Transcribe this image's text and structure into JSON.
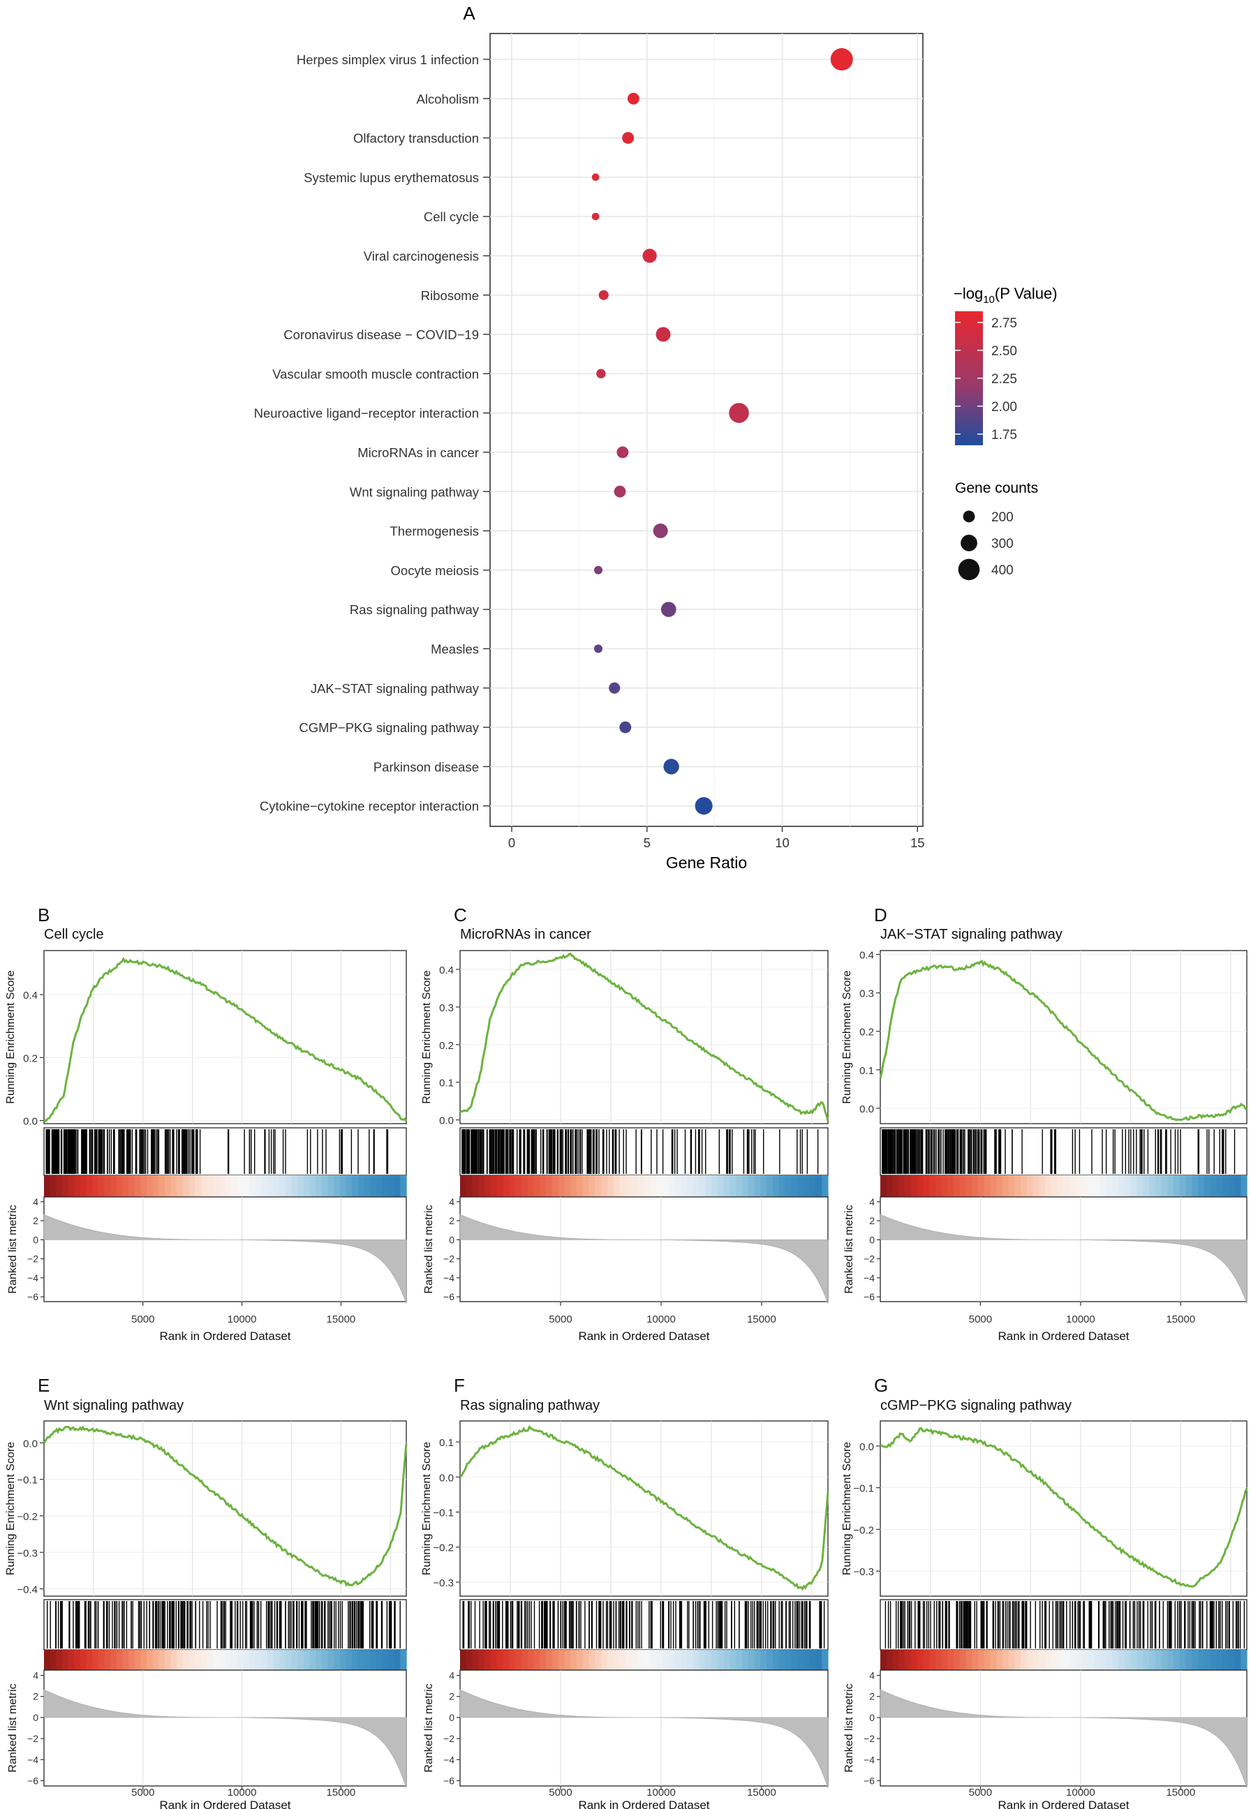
{
  "colors": {
    "high": "#E8272E",
    "mid": "#9B3A6B",
    "low": "#1E4C9E",
    "curve": "#6CB33F",
    "metric_fill": "#BDBDBD",
    "grid": "#E6E6E6"
  },
  "dotplot": {
    "panel_label": "A",
    "xlabel": "Gene Ratio",
    "xticks": [
      "0",
      "5",
      "10",
      "15"
    ],
    "legend_color": {
      "title_prefix": "−log",
      "title_sub": "10",
      "title_suffix": "(P Value)",
      "ticks": [
        "2.75",
        "2.50",
        "2.25",
        "2.00",
        "1.75"
      ]
    },
    "legend_size": {
      "title": "Gene counts",
      "labels": [
        "200",
        "300",
        "400"
      ]
    }
  },
  "chart_data": [
    {
      "type": "scatter",
      "title": "A",
      "xlabel": "Gene Ratio",
      "xlim": [
        -0.8,
        15.2
      ],
      "pvalue_range": [
        1.65,
        2.85
      ],
      "size_range": [
        100,
        420
      ],
      "categories": [
        "Herpes simplex virus 1 infection",
        "Alcoholism",
        "Olfactory transduction",
        "Systemic lupus erythematosus",
        "Cell cycle",
        "Viral carcinogenesis",
        "Ribosome",
        "Coronavirus disease − COVID−19",
        "Vascular smooth muscle contraction",
        "Neuroactive ligand−receptor interaction",
        "MicroRNAs in cancer",
        "Wnt signaling pathway",
        "Thermogenesis",
        "Oocyte meiosis",
        "Ras signaling pathway",
        "Measles",
        "JAK−STAT signaling pathway",
        "CGMP−PKG signaling pathway",
        "Parkinson disease",
        "Cytokine−cytokine receptor interaction"
      ],
      "gene_ratio": [
        12.2,
        4.5,
        4.3,
        3.1,
        3.1,
        5.1,
        3.4,
        5.6,
        3.3,
        8.4,
        4.1,
        4.0,
        5.5,
        3.2,
        5.8,
        3.2,
        3.8,
        4.2,
        5.9,
        7.1
      ],
      "neg_log10_p": [
        2.82,
        2.8,
        2.78,
        2.76,
        2.74,
        2.7,
        2.66,
        2.62,
        2.58,
        2.55,
        2.4,
        2.35,
        2.18,
        2.1,
        2.02,
        1.95,
        1.92,
        1.85,
        1.7,
        1.68
      ],
      "gene_counts": [
        420,
        200,
        200,
        110,
        110,
        250,
        160,
        260,
        150,
        370,
        200,
        200,
        260,
        130,
        270,
        130,
        190,
        200,
        280,
        320
      ]
    },
    {
      "type": "line",
      "panel_label": "B",
      "title": "Cell cycle",
      "ylabel": "Running Enrichment Score",
      "ylim": [
        -0.01,
        0.54
      ],
      "yticks": [
        0.0,
        0.2,
        0.4
      ],
      "ytick_labels": [
        "0.0",
        "0.2",
        "0.4"
      ],
      "x": [
        0,
        300,
        1000,
        1500,
        2000,
        2500,
        3000,
        3500,
        4000,
        5000,
        6000,
        8000,
        10000,
        12000,
        14000,
        16000,
        17000,
        18000,
        18300
      ],
      "y": [
        0.0,
        0.01,
        0.08,
        0.25,
        0.35,
        0.42,
        0.46,
        0.48,
        0.51,
        0.5,
        0.49,
        0.43,
        0.35,
        0.26,
        0.19,
        0.13,
        0.08,
        0.01,
        0.0
      ],
      "hits_dense_until": 0.72,
      "heat_split": 0.55
    },
    {
      "type": "line",
      "panel_label": "C",
      "title": "MicroRNAs in cancer",
      "ylabel": "Running Enrichment Score",
      "ylim": [
        -0.01,
        0.45
      ],
      "yticks": [
        0.0,
        0.1,
        0.2,
        0.3,
        0.4
      ],
      "ytick_labels": [
        "0.0",
        "0.1",
        "0.2",
        "0.3",
        "0.4"
      ],
      "x": [
        0,
        500,
        1000,
        1500,
        2000,
        2500,
        3000,
        4000,
        5000,
        5500,
        6000,
        8000,
        10000,
        12000,
        14000,
        16000,
        17000,
        17500,
        18000,
        18300
      ],
      "y": [
        0.02,
        0.03,
        0.12,
        0.27,
        0.34,
        0.38,
        0.41,
        0.42,
        0.43,
        0.44,
        0.42,
        0.35,
        0.27,
        0.19,
        0.12,
        0.05,
        0.02,
        0.02,
        0.05,
        0.0
      ],
      "hits_dense_until": 0.72,
      "heat_split": 0.55
    },
    {
      "type": "line",
      "panel_label": "D",
      "title": "JAK−STAT signaling pathway",
      "ylabel": "Running Enrichment Score",
      "ylim": [
        -0.04,
        0.41
      ],
      "yticks": [
        0.0,
        0.1,
        0.2,
        0.3,
        0.4
      ],
      "ytick_labels": [
        "0.0",
        "0.1",
        "0.2",
        "0.3",
        "0.4"
      ],
      "x": [
        0,
        300,
        600,
        1000,
        1500,
        2000,
        3000,
        4000,
        5000,
        6000,
        8000,
        10000,
        12000,
        14000,
        15000,
        16000,
        17000,
        18000,
        18300
      ],
      "y": [
        0.08,
        0.15,
        0.25,
        0.33,
        0.35,
        0.36,
        0.37,
        0.36,
        0.38,
        0.36,
        0.28,
        0.17,
        0.07,
        -0.02,
        -0.03,
        -0.02,
        -0.02,
        0.01,
        0.0
      ],
      "hits_dense_until": 0.55,
      "heat_split": 0.58
    },
    {
      "type": "line",
      "panel_label": "E",
      "title": "Wnt signaling pathway",
      "ylabel": "Running Enrichment Score",
      "ylim": [
        -0.42,
        0.06
      ],
      "yticks": [
        0.0,
        -0.1,
        -0.2,
        -0.3,
        -0.4
      ],
      "ytick_labels": [
        "0.0",
        "−0.1",
        "−0.2",
        "−0.3",
        "−0.4"
      ],
      "x": [
        0,
        500,
        1000,
        2000,
        3000,
        4000,
        5000,
        6000,
        8000,
        10000,
        12000,
        14000,
        15500,
        16000,
        16500,
        17000,
        17500,
        18000,
        18300
      ],
      "y": [
        0.0,
        0.03,
        0.04,
        0.04,
        0.03,
        0.02,
        0.01,
        -0.02,
        -0.11,
        -0.2,
        -0.29,
        -0.36,
        -0.39,
        -0.38,
        -0.36,
        -0.33,
        -0.28,
        -0.2,
        0.0
      ],
      "hits_dense_until": 1.0,
      "heat_split": 0.48
    },
    {
      "type": "line",
      "panel_label": "F",
      "title": "Ras signaling pathway",
      "ylabel": "Running Enrichment Score",
      "ylim": [
        -0.34,
        0.16
      ],
      "yticks": [
        0.1,
        0.0,
        -0.1,
        -0.2,
        -0.3
      ],
      "ytick_labels": [
        "0.1",
        "0.0",
        "−0.1",
        "−0.2",
        "−0.3"
      ],
      "x": [
        0,
        300,
        1000,
        2000,
        3000,
        3500,
        4000,
        6000,
        8000,
        10000,
        12000,
        14000,
        16000,
        17000,
        17500,
        18000,
        18300
      ],
      "y": [
        0.0,
        0.03,
        0.08,
        0.11,
        0.13,
        0.14,
        0.13,
        0.08,
        0.01,
        -0.07,
        -0.15,
        -0.22,
        -0.28,
        -0.32,
        -0.3,
        -0.25,
        -0.04
      ],
      "hits_dense_until": 1.0,
      "heat_split": 0.5
    },
    {
      "type": "line",
      "panel_label": "G",
      "title": "cGMP−PKG signaling pathway",
      "ylabel": "Running Enrichment Score",
      "ylim": [
        -0.36,
        0.06
      ],
      "yticks": [
        0.0,
        -0.1,
        -0.2,
        -0.3
      ],
      "ytick_labels": [
        "0.0",
        "−0.1",
        "−0.2",
        "−0.3"
      ],
      "x": [
        0,
        500,
        1000,
        1500,
        2000,
        3000,
        4000,
        5000,
        6000,
        8000,
        10000,
        12000,
        14000,
        15500,
        16000,
        17000,
        17500,
        18000,
        18300
      ],
      "y": [
        0.0,
        0.0,
        0.03,
        0.01,
        0.04,
        0.03,
        0.02,
        0.01,
        -0.01,
        -0.08,
        -0.17,
        -0.25,
        -0.31,
        -0.34,
        -0.32,
        -0.28,
        -0.22,
        -0.15,
        -0.1
      ],
      "hits_dense_until": 1.0,
      "heat_split": 0.5
    }
  ],
  "gsea_common": {
    "xlabel": "Rank in Ordered Dataset",
    "metric_ylabel": "Ranked list metric",
    "xticks": [
      "5000",
      "10000",
      "15000"
    ],
    "metric_ticks": [
      "4",
      "2",
      "0",
      "−2",
      "−4",
      "−6"
    ],
    "metric_tick_values": [
      4,
      2,
      0,
      -2,
      -4,
      -6
    ],
    "metric_ylim": [
      -6.5,
      4.5
    ],
    "xmax": 18300
  }
}
